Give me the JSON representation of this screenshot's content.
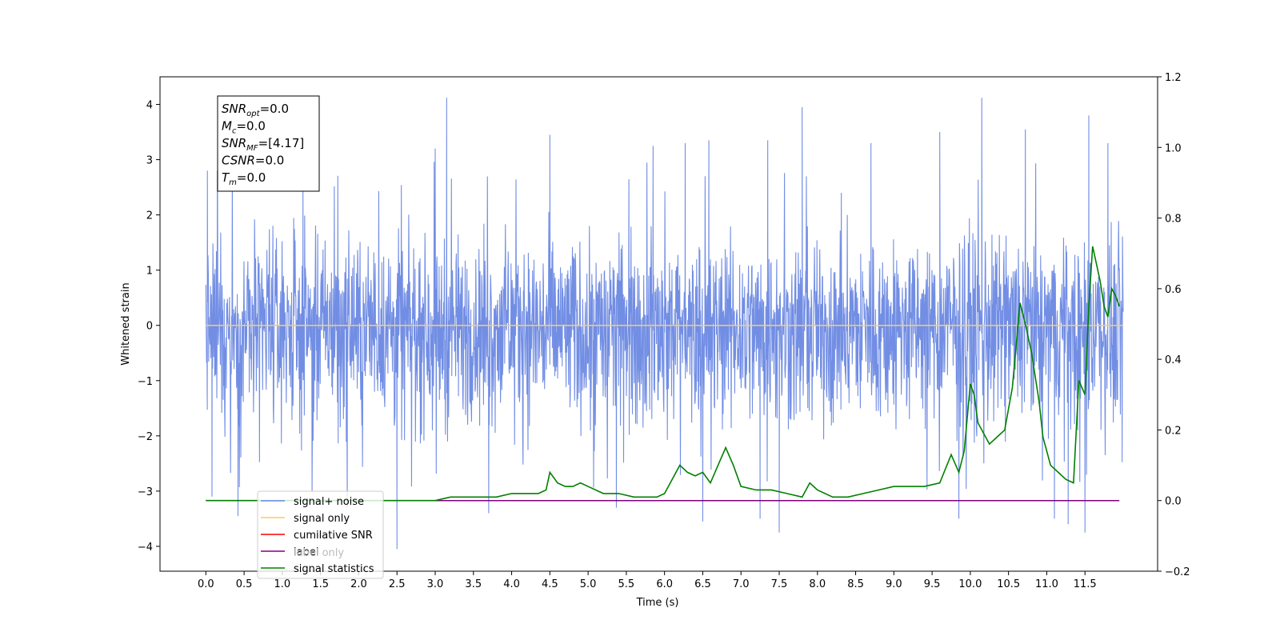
{
  "chart_data": {
    "type": "line",
    "xlabel": "Time (s)",
    "ylabel": "Whitened strain",
    "xlim": [
      -0.6,
      12.45
    ],
    "ylim": [
      -4.45,
      4.5
    ],
    "y2lim": [
      -0.2,
      1.2
    ],
    "x_ticks": [
      0.0,
      0.5,
      1.0,
      1.5,
      2.0,
      2.5,
      3.0,
      3.5,
      4.0,
      4.5,
      5.0,
      5.5,
      6.0,
      6.5,
      7.0,
      7.5,
      8.0,
      8.5,
      9.0,
      9.5,
      10.0,
      10.5,
      11.0,
      11.5
    ],
    "x_tick_labels": [
      "0.0",
      "0.5",
      "1.0",
      "1.5",
      "2.0",
      "2.5",
      "3.0",
      "3.5",
      "4.0",
      "4.5",
      "5.0",
      "5.5",
      "6.0",
      "6.5",
      "7.0",
      "7.5",
      "8.0",
      "8.5",
      "9.0",
      "9.5",
      "10.0",
      "10.5",
      "11.0",
      "11.5"
    ],
    "y_ticks": [
      4,
      3,
      2,
      1,
      0,
      -1,
      -2,
      -3,
      -4
    ],
    "y_tick_labels": [
      "4",
      "3",
      "2",
      "1",
      "0",
      "−1",
      "−2",
      "−3",
      "−4"
    ],
    "y2_ticks": [
      1.2,
      1.0,
      0.8,
      0.6,
      0.4,
      0.2,
      0.0,
      -0.2
    ],
    "y2_tick_labels": [
      "1.2",
      "1.0",
      "0.8",
      "0.6",
      "0.4",
      "0.2",
      "0.0",
      "−0.2"
    ],
    "grid": false,
    "legend_position": "lower-left",
    "legend": [
      {
        "label": "signal+ noise",
        "color": "#6a88e3"
      },
      {
        "label": "signal only",
        "color": "#ffc966"
      },
      {
        "label": "cumilative SNR",
        "color": "#ff0000"
      },
      {
        "label": "label",
        "color": "#800080"
      },
      {
        "label": "signal statistics",
        "color": "#008000"
      }
    ],
    "hidden_legend_text": "label only",
    "annotation_box": [
      {
        "base": "SNR",
        "sub": "opt",
        "value": "=0.0"
      },
      {
        "base": "M",
        "sub": "c",
        "value": "=0.0"
      },
      {
        "base": "SNR",
        "sub": "MF",
        "value": "=[4.17]"
      },
      {
        "base": "CSNR",
        "sub": "",
        "value": "=0.0"
      },
      {
        "base": "T",
        "sub": "m",
        "value": "=0.0"
      }
    ],
    "series": [
      {
        "name": "signal+ noise",
        "axis": "left",
        "color": "#6a88e3",
        "noise_band": {
          "x_start": 0.0,
          "x_end": 12.0,
          "dense_min": -1.9,
          "dense_max": 1.5
        },
        "spikes": [
          {
            "x": 0.02,
            "y": 2.8
          },
          {
            "x": 0.08,
            "y": -3.1
          },
          {
            "x": 0.15,
            "y": 2.8
          },
          {
            "x": 0.42,
            "y": -3.45
          },
          {
            "x": 1.27,
            "y": 2.7
          },
          {
            "x": 1.85,
            "y": -3.3
          },
          {
            "x": 2.5,
            "y": -4.05
          },
          {
            "x": 3.15,
            "y": 4.12
          },
          {
            "x": 3.0,
            "y": 3.2
          },
          {
            "x": 3.7,
            "y": -3.4
          },
          {
            "x": 4.5,
            "y": 3.45
          },
          {
            "x": 5.37,
            "y": -3.3
          },
          {
            "x": 5.85,
            "y": 3.25
          },
          {
            "x": 6.27,
            "y": 3.3
          },
          {
            "x": 6.5,
            "y": -3.55
          },
          {
            "x": 6.58,
            "y": 3.35
          },
          {
            "x": 7.25,
            "y": -3.5
          },
          {
            "x": 7.35,
            "y": 3.35
          },
          {
            "x": 7.5,
            "y": -3.75
          },
          {
            "x": 7.8,
            "y": 3.95
          },
          {
            "x": 8.7,
            "y": 3.3
          },
          {
            "x": 9.6,
            "y": 3.5
          },
          {
            "x": 9.85,
            "y": -3.5
          },
          {
            "x": 10.15,
            "y": 4.12
          },
          {
            "x": 10.72,
            "y": 3.55
          },
          {
            "x": 11.1,
            "y": -3.5
          },
          {
            "x": 11.28,
            "y": -3.6
          },
          {
            "x": 11.5,
            "y": -3.75
          },
          {
            "x": 11.55,
            "y": 3.8
          },
          {
            "x": 11.8,
            "y": 3.3
          }
        ]
      },
      {
        "name": "signal only",
        "axis": "left",
        "color": "#ffc966",
        "x": [
          0.0,
          12.0
        ],
        "y": [
          0.0,
          0.0
        ]
      },
      {
        "name": "label",
        "axis": "right",
        "color": "#800080",
        "x": [
          0.0,
          11.95
        ],
        "y": [
          0.0,
          0.0
        ]
      },
      {
        "name": "signal statistics",
        "axis": "right",
        "color": "#008000",
        "x": [
          0.0,
          0.5,
          1.0,
          1.5,
          2.0,
          2.5,
          3.0,
          3.2,
          3.4,
          3.6,
          3.8,
          4.0,
          4.2,
          4.35,
          4.45,
          4.5,
          4.6,
          4.7,
          4.8,
          4.9,
          5.0,
          5.2,
          5.4,
          5.6,
          5.8,
          5.9,
          6.0,
          6.1,
          6.2,
          6.3,
          6.4,
          6.5,
          6.6,
          6.7,
          6.8,
          6.9,
          7.0,
          7.2,
          7.4,
          7.6,
          7.8,
          7.9,
          8.0,
          8.2,
          8.4,
          8.6,
          8.8,
          9.0,
          9.2,
          9.4,
          9.6,
          9.75,
          9.85,
          9.92,
          10.0,
          10.05,
          10.1,
          10.15,
          10.25,
          10.35,
          10.45,
          10.55,
          10.65,
          10.72,
          10.8,
          10.9,
          10.95,
          11.05,
          11.15,
          11.25,
          11.35,
          11.42,
          11.5,
          11.55,
          11.6,
          11.7,
          11.75,
          11.8,
          11.85,
          11.9,
          11.95
        ],
        "y": [
          0.0,
          0.0,
          0.0,
          0.0,
          0.0,
          0.0,
          0.0,
          0.01,
          0.01,
          0.01,
          0.01,
          0.02,
          0.02,
          0.02,
          0.03,
          0.08,
          0.05,
          0.04,
          0.04,
          0.05,
          0.04,
          0.02,
          0.02,
          0.01,
          0.01,
          0.01,
          0.02,
          0.06,
          0.1,
          0.08,
          0.07,
          0.08,
          0.05,
          0.1,
          0.15,
          0.1,
          0.04,
          0.03,
          0.03,
          0.02,
          0.01,
          0.05,
          0.03,
          0.01,
          0.01,
          0.02,
          0.03,
          0.04,
          0.04,
          0.04,
          0.05,
          0.13,
          0.08,
          0.14,
          0.33,
          0.3,
          0.22,
          0.2,
          0.16,
          0.18,
          0.2,
          0.32,
          0.56,
          0.5,
          0.42,
          0.28,
          0.18,
          0.1,
          0.08,
          0.06,
          0.05,
          0.34,
          0.3,
          0.55,
          0.72,
          0.62,
          0.55,
          0.52,
          0.6,
          0.58,
          0.55
        ]
      }
    ]
  }
}
